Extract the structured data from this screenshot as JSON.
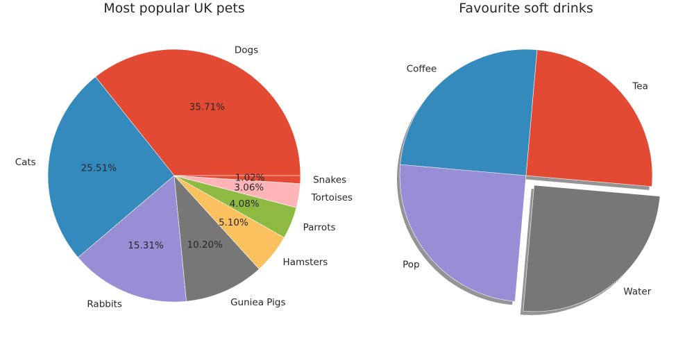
{
  "chart_data": [
    {
      "type": "pie",
      "title": "Most popular UK pets",
      "slices": [
        {
          "label": "Dogs",
          "value": 35.71,
          "pct_text": "35.71%",
          "color": "#E24A33"
        },
        {
          "label": "Cats",
          "value": 25.51,
          "pct_text": "25.51%",
          "color": "#348ABD"
        },
        {
          "label": "Rabbits",
          "value": 15.31,
          "pct_text": "15.31%",
          "color": "#988ED5"
        },
        {
          "label": "Guniea Pigs",
          "value": 10.2,
          "pct_text": "10.20%",
          "color": "#777777"
        },
        {
          "label": "Hamsters",
          "value": 5.1,
          "pct_text": "5.10%",
          "color": "#FBC15E"
        },
        {
          "label": "Parrots",
          "value": 4.08,
          "pct_text": "4.08%",
          "color": "#8EBA42"
        },
        {
          "label": "Tortoises",
          "value": 3.06,
          "pct_text": "3.06%",
          "color": "#FFB5B8"
        },
        {
          "label": "Snakes",
          "value": 1.02,
          "pct_text": "1.02%",
          "color": "#E24A33"
        }
      ],
      "start_angle_deg": 0,
      "counterclockwise": true,
      "show_percentages": true,
      "shadow": false
    },
    {
      "type": "pie",
      "title": "Favourite soft drinks",
      "slices": [
        {
          "label": "Tea",
          "value": 25,
          "color": "#E24A33",
          "explode": 0
        },
        {
          "label": "Coffee",
          "value": 25,
          "color": "#348ABD",
          "explode": 0
        },
        {
          "label": "Pop",
          "value": 25,
          "color": "#988ED5",
          "explode": 0
        },
        {
          "label": "Water",
          "value": 25,
          "color": "#777777",
          "explode": 0.1
        }
      ],
      "start_angle_deg": -5,
      "counterclockwise": true,
      "show_percentages": false,
      "shadow": true
    }
  ]
}
